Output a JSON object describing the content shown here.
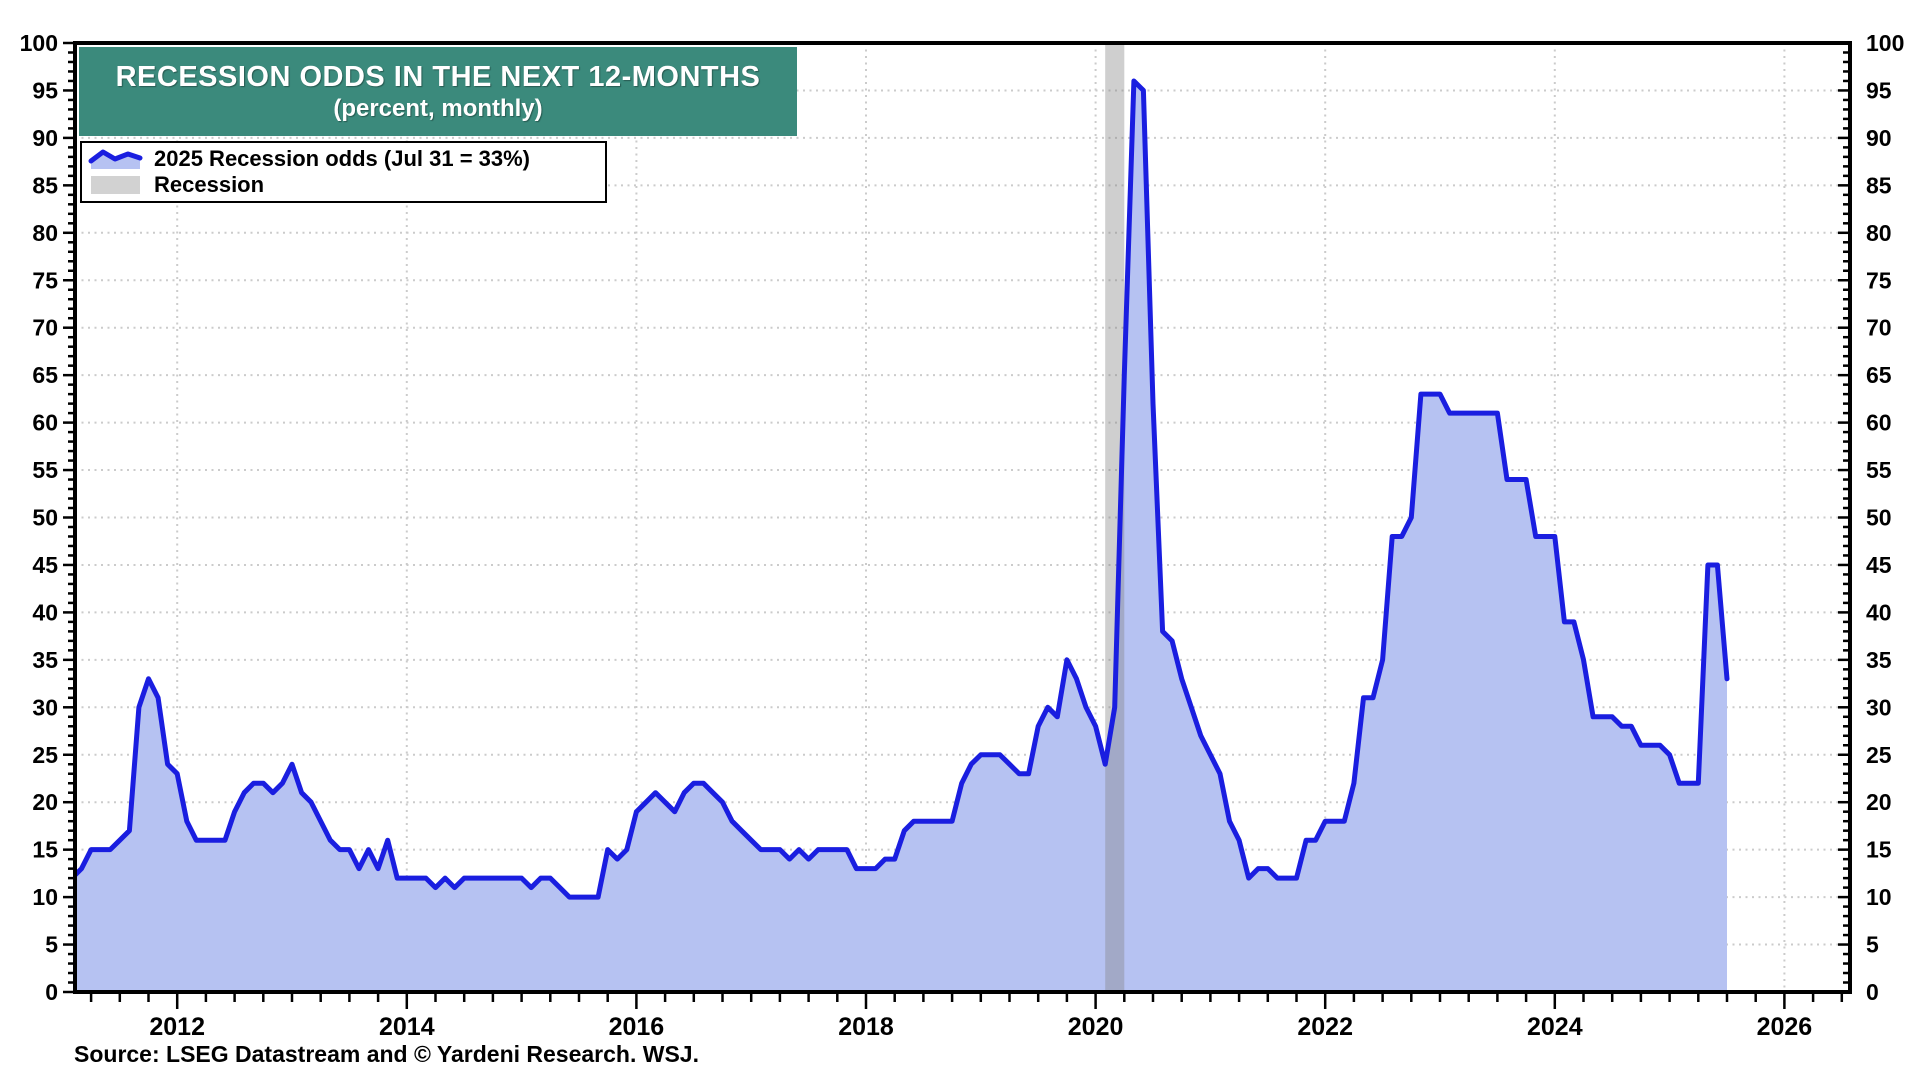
{
  "title": {
    "line1": "RECESSION ODDS IN THE NEXT 12-MONTHS",
    "line2": "(percent, monthly)"
  },
  "legend": {
    "series_label": "2025 Recession odds (Jul 31 = 33%)",
    "recession_label": "Recession"
  },
  "source": "Source: LSEG Datastream and © Yardeni Research. WSJ.",
  "colors": {
    "title_background": "#3B8A7C",
    "title_text": "#FFFFFF",
    "line": "#1A1EE0",
    "area_fill": "#B6C2F2",
    "recession_band": "rgba(128,128,128,0.38)",
    "recession_swatch": "#D2D2D2",
    "gridline": "#CBCBCB",
    "axis": "#000000",
    "label_text": "#000000"
  },
  "chart_data": {
    "type": "area",
    "title": "RECESSION ODDS IN THE NEXT 12-MONTHS",
    "subtitle": "(percent, monthly)",
    "ylabel": "percent",
    "ylim": [
      0,
      100
    ],
    "ytick_step": 5,
    "grid": "dotted",
    "legend_position": "top-left",
    "x_start": "2011-01",
    "x_end": "2025-07",
    "x_axis_labels": [
      "2012",
      "2014",
      "2016",
      "2018",
      "2020",
      "2022",
      "2024",
      "2026"
    ],
    "last_point": {
      "date": "Jul 31",
      "value": 33
    },
    "recession_band": {
      "start": "2020-02",
      "end": "2020-04"
    },
    "series": [
      {
        "name": "2025 Recession odds (Jul 31 = 33%)",
        "frequency": "monthly",
        "monthly_values_by_year": {
          "2011": [
            12,
            12,
            13,
            15,
            15,
            15,
            16,
            17,
            30,
            33,
            31,
            24
          ],
          "2012": [
            23,
            18,
            16,
            16,
            16,
            16,
            19,
            21,
            22,
            22,
            21,
            22
          ],
          "2013": [
            24,
            21,
            20,
            18,
            16,
            15,
            15,
            13,
            15,
            13,
            16,
            12
          ],
          "2014": [
            12,
            12,
            12,
            11,
            12,
            11,
            12,
            12,
            12,
            12,
            12,
            12
          ],
          "2015": [
            12,
            11,
            12,
            12,
            11,
            10,
            10,
            10,
            10,
            15,
            14,
            15
          ],
          "2016": [
            19,
            20,
            21,
            20,
            19,
            21,
            22,
            22,
            21,
            20,
            18,
            17
          ],
          "2017": [
            16,
            15,
            15,
            15,
            14,
            15,
            14,
            15,
            15,
            15,
            15,
            13
          ],
          "2018": [
            13,
            13,
            14,
            14,
            17,
            18,
            18,
            18,
            18,
            18,
            22,
            24
          ],
          "2019": [
            25,
            25,
            25,
            24,
            23,
            23,
            28,
            30,
            29,
            35,
            33,
            30
          ],
          "2020": [
            28,
            24,
            30,
            65,
            96,
            95,
            62,
            38,
            37,
            33,
            30,
            27
          ],
          "2021": [
            25,
            23,
            18,
            16,
            12,
            13,
            13,
            12,
            12,
            12,
            16,
            16
          ],
          "2022": [
            18,
            18,
            18,
            22,
            31,
            31,
            35,
            48,
            48,
            50,
            63,
            63
          ],
          "2023": [
            63,
            61,
            61,
            61,
            61,
            61,
            61,
            54,
            54,
            54,
            48,
            48
          ],
          "2024": [
            48,
            39,
            39,
            35,
            29,
            29,
            29,
            28,
            28,
            26,
            26,
            26
          ],
          "2025": [
            25,
            22,
            22,
            22,
            45,
            45,
            33
          ]
        }
      }
    ]
  }
}
